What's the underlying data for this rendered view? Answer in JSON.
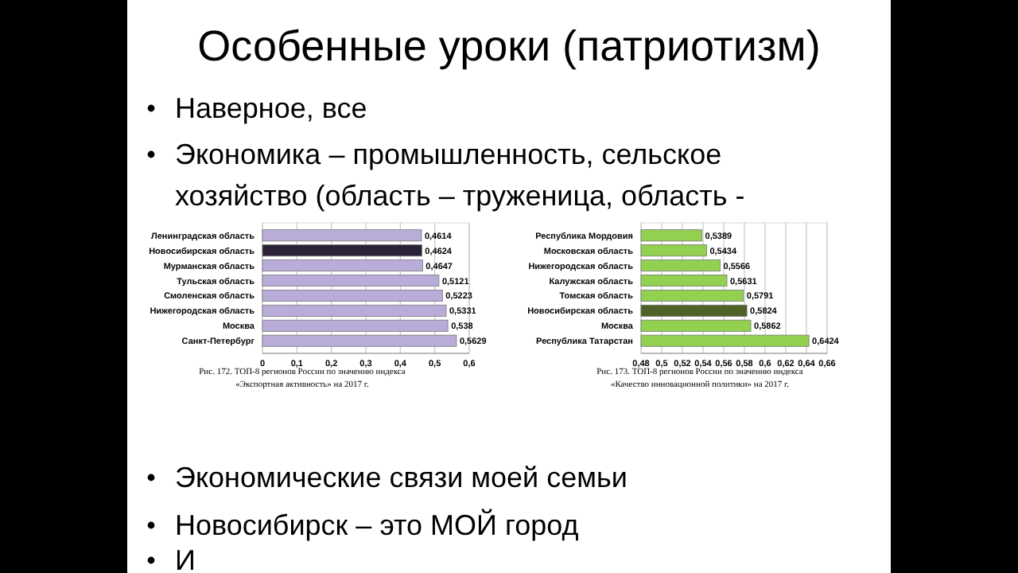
{
  "chart_data": [
    {
      "type": "bar",
      "orientation": "horizontal",
      "title": "Особенные уроки   (патриотизм)",
      "annotations": [
        "Наверное, все",
        "Экономика – промышленность, сельское",
        "хозяйство (область – труженица, область -",
        "Рис. 172. ТОП-8 регионов России по значению индекса",
        "«Экспортная активность» на 2017 г."
      ],
      "categories": [
        "Ленинградская область",
        "Новосибирская область",
        "Мурманская область",
        "Тульская область",
        "Смоленская область",
        "Нижегородская область",
        "Москва",
        "Санкт-Петербург"
      ],
      "values": [
        0.4614,
        0.4624,
        0.4647,
        0.5121,
        0.5223,
        0.5331,
        0.538,
        0.5629
      ],
      "value_labels": [
        "0,4614",
        "0,4624",
        "0,4647",
        "0,5121",
        "0,5223",
        "0,5331",
        "0,538",
        "0,5629"
      ],
      "colors": [
        "#b9acd8",
        "#2b2238",
        "#b9acd8",
        "#b9acd8",
        "#b9acd8",
        "#b9acd8",
        "#b9acd8",
        "#b9acd8"
      ],
      "xlim": [
        0,
        0.6
      ],
      "xticks": [
        0,
        {
          "value": 0.1,
          "label": "0,1"
        },
        {
          "value": 0.2,
          "label": "0,2"
        },
        {
          "value": 0.3,
          "label": "0,3"
        },
        {
          "value": 0.4,
          "label": "0,4"
        },
        {
          "value": 0.5,
          "label": "0,5"
        },
        {
          "value": 0.6,
          "label": "0,6"
        }
      ],
      "grid": "x"
    },
    {
      "type": "bar",
      "orientation": "horizontal",
      "annotations": [
        "Рис. 173. ТОП-8 регионов России по значению индекса",
        "«Качество инновационной политики» на 2017 г.",
        "Экономические связи моей семьи",
        "Новосибирск – это МОЙ город",
        "И"
      ],
      "categories": [
        "Республика Мордовия",
        "Московская область",
        "Нижегородская область",
        "Калужская область",
        "Томская область",
        "Новосибирская область",
        "Москва",
        "Республика Татарстан"
      ],
      "values": [
        0.5389,
        0.5434,
        0.5566,
        0.5631,
        0.5791,
        0.5824,
        0.5862,
        0.6424
      ],
      "value_labels": [
        "0,5389",
        "0,5434",
        "0,5566",
        "0,5631",
        "0,5791",
        "0,5824",
        "0,5862",
        "0,6424"
      ],
      "colors": [
        "#92d050",
        "#92d050",
        "#92d050",
        "#92d050",
        "#92d050",
        "#4f6228",
        "#92d050",
        "#92d050"
      ],
      "xlim": [
        0.48,
        0.66
      ],
      "xticks": [
        {
          "value": 0.48,
          "label": "0,48"
        },
        {
          "value": 0.5,
          "label": "0,5"
        },
        {
          "value": 0.52,
          "label": "0,52"
        },
        {
          "value": 0.54,
          "label": "0,54"
        },
        {
          "value": 0.56,
          "label": "0,56"
        },
        {
          "value": 0.58,
          "label": "0,58"
        },
        {
          "value": 0.6,
          "label": "0,6"
        },
        {
          "value": 0.62,
          "label": "0,62"
        },
        {
          "value": 0.64,
          "label": "0,64"
        },
        {
          "value": 0.66,
          "label": "0,66"
        }
      ],
      "grid": "x"
    }
  ]
}
